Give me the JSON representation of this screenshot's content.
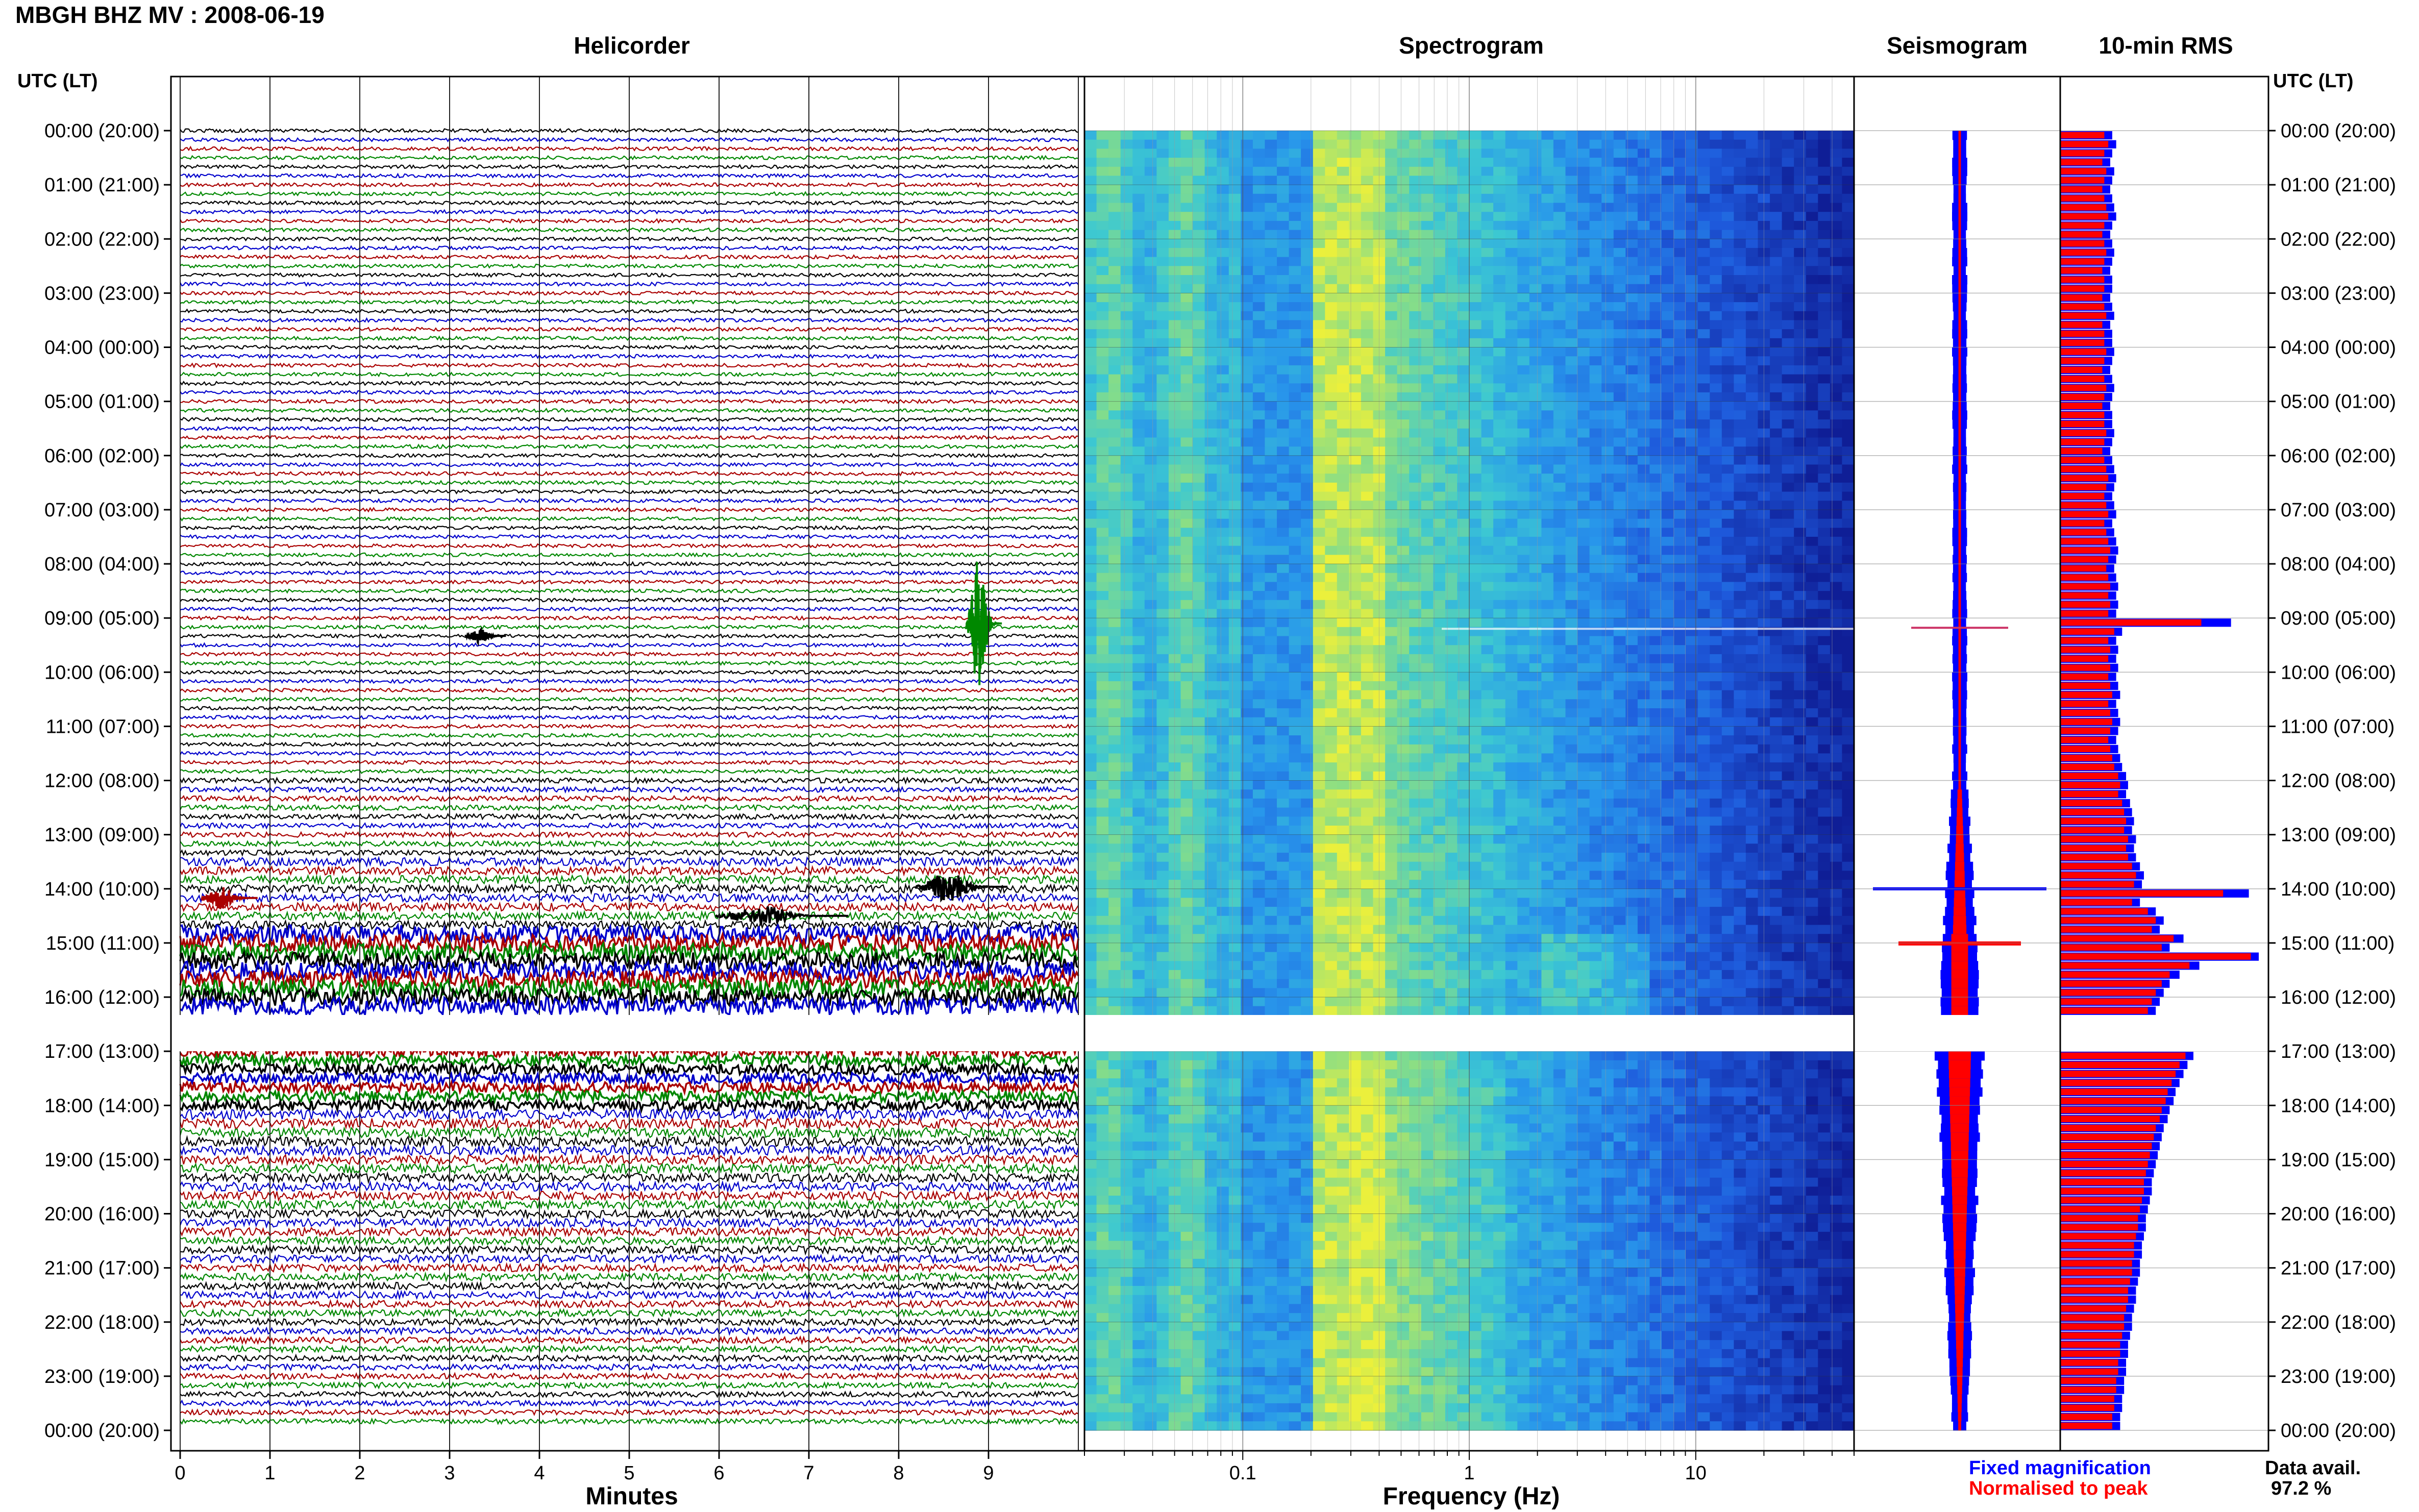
{
  "header": {
    "title": "MBGH BHZ MV : 2008-06-19"
  },
  "panels": {
    "helicorder": "Helicorder",
    "spectrogram": "Spectrogram",
    "seismogram": "Seismogram",
    "rms": "10-min RMS"
  },
  "axes": {
    "time_label_left": "UTC (LT)",
    "time_label_right": "UTC (LT)",
    "helicorder_xlabel": "Minutes",
    "spectrogram_xlabel": "Frequency (Hz)"
  },
  "legend": {
    "fixed": "Fixed magnification",
    "normalised": "Normalised to peak",
    "fixed_color": "#0000ff",
    "normalised_color": "#ff0000"
  },
  "availability": {
    "label": "Data avail.",
    "value": "97.2 %"
  },
  "colors": {
    "trace_cycle": [
      "#000000",
      "#0000cc",
      "#aa0000",
      "#008800"
    ],
    "spectrogram_low": "#0a1e9c",
    "spectrogram_high": "#e8f03a"
  },
  "chart_data": {
    "type": "helicorder",
    "time_ticks": [
      "00:00 (20:00)",
      "01:00 (21:00)",
      "02:00 (22:00)",
      "03:00 (23:00)",
      "04:00 (00:00)",
      "05:00 (01:00)",
      "06:00 (02:00)",
      "07:00 (03:00)",
      "08:00 (04:00)",
      "09:00 (05:00)",
      "10:00 (06:00)",
      "11:00 (07:00)",
      "12:00 (08:00)",
      "13:00 (09:00)",
      "14:00 (10:00)",
      "15:00 (11:00)",
      "16:00 (12:00)",
      "17:00 (13:00)",
      "18:00 (14:00)",
      "19:00 (15:00)",
      "20:00 (16:00)",
      "21:00 (17:00)",
      "22:00 (18:00)",
      "23:00 (19:00)",
      "00:00 (20:00)"
    ],
    "minute_ticks": [
      "0",
      "1",
      "2",
      "3",
      "4",
      "5",
      "6",
      "7",
      "8",
      "9"
    ],
    "xlim_minutes": [
      0,
      10
    ],
    "freq_ticks": [
      "0.1",
      "1",
      "10"
    ],
    "freq_range_hz": [
      0.02,
      50
    ],
    "freq_scale": "log",
    "rows_per_hour": 6,
    "data_gap_hours": [
      16.33,
      17.0
    ],
    "rms_fixed": [
      0.26,
      0.28,
      0.26,
      0.25,
      0.27,
      0.26,
      0.25,
      0.26,
      0.27,
      0.28,
      0.26,
      0.25,
      0.26,
      0.27,
      0.26,
      0.25,
      0.26,
      0.26,
      0.25,
      0.26,
      0.27,
      0.25,
      0.26,
      0.26,
      0.27,
      0.26,
      0.25,
      0.26,
      0.27,
      0.26,
      0.25,
      0.26,
      0.26,
      0.27,
      0.26,
      0.25,
      0.26,
      0.27,
      0.28,
      0.27,
      0.26,
      0.27,
      0.28,
      0.26,
      0.27,
      0.28,
      0.29,
      0.28,
      0.27,
      0.28,
      0.29,
      0.28,
      0.29,
      0.28,
      0.86,
      0.31,
      0.28,
      0.29,
      0.28,
      0.29,
      0.28,
      0.29,
      0.3,
      0.28,
      0.29,
      0.3,
      0.29,
      0.28,
      0.29,
      0.3,
      0.31,
      0.33,
      0.34,
      0.33,
      0.35,
      0.36,
      0.37,
      0.36,
      0.38,
      0.37,
      0.38,
      0.4,
      0.42,
      0.41,
      0.95,
      0.4,
      0.48,
      0.52,
      0.5,
      0.62,
      0.55,
      1.0,
      0.7,
      0.6,
      0.55,
      0.52,
      0.5,
      0.48,
      null,
      null,
      null,
      null,
      0.67,
      0.64,
      0.62,
      0.6,
      0.58,
      0.57,
      0.55,
      0.54,
      0.52,
      0.51,
      0.5,
      0.49,
      0.48,
      0.47,
      0.46,
      0.46,
      0.45,
      0.44,
      0.43,
      0.43,
      0.42,
      0.41,
      0.41,
      0.4,
      0.4,
      0.39,
      0.38,
      0.38,
      0.37,
      0.36,
      0.36,
      0.35,
      0.34,
      0.34,
      0.33,
      0.33,
      0.32,
      0.32,
      0.31,
      0.31,
      0.3,
      0.3,
      0.29,
      0.29
    ],
    "rms_normalised": [
      0.22,
      0.24,
      0.22,
      0.21,
      0.23,
      0.22,
      0.21,
      0.22,
      0.23,
      0.24,
      0.22,
      0.21,
      0.22,
      0.23,
      0.22,
      0.21,
      0.22,
      0.22,
      0.21,
      0.22,
      0.23,
      0.21,
      0.22,
      0.22,
      0.23,
      0.22,
      0.21,
      0.22,
      0.23,
      0.22,
      0.21,
      0.22,
      0.22,
      0.23,
      0.22,
      0.21,
      0.22,
      0.23,
      0.24,
      0.23,
      0.22,
      0.23,
      0.24,
      0.22,
      0.23,
      0.24,
      0.25,
      0.24,
      0.23,
      0.24,
      0.25,
      0.24,
      0.25,
      0.24,
      0.71,
      0.27,
      0.24,
      0.25,
      0.24,
      0.25,
      0.24,
      0.25,
      0.26,
      0.24,
      0.25,
      0.26,
      0.25,
      0.24,
      0.25,
      0.26,
      0.27,
      0.29,
      0.3,
      0.29,
      0.31,
      0.32,
      0.33,
      0.32,
      0.34,
      0.33,
      0.34,
      0.36,
      0.38,
      0.37,
      0.82,
      0.36,
      0.44,
      0.48,
      0.46,
      0.57,
      0.51,
      0.96,
      0.65,
      0.55,
      0.51,
      0.48,
      0.46,
      0.44,
      null,
      null,
      null,
      null,
      0.63,
      0.6,
      0.58,
      0.56,
      0.54,
      0.53,
      0.51,
      0.5,
      0.48,
      0.47,
      0.46,
      0.45,
      0.44,
      0.43,
      0.42,
      0.42,
      0.41,
      0.4,
      0.39,
      0.39,
      0.38,
      0.37,
      0.37,
      0.36,
      0.36,
      0.35,
      0.34,
      0.34,
      0.33,
      0.32,
      0.32,
      0.31,
      0.3,
      0.3,
      0.29,
      0.29,
      0.28,
      0.28,
      0.27,
      0.27,
      0.26,
      0.26,
      0.25,
      0.25
    ]
  }
}
